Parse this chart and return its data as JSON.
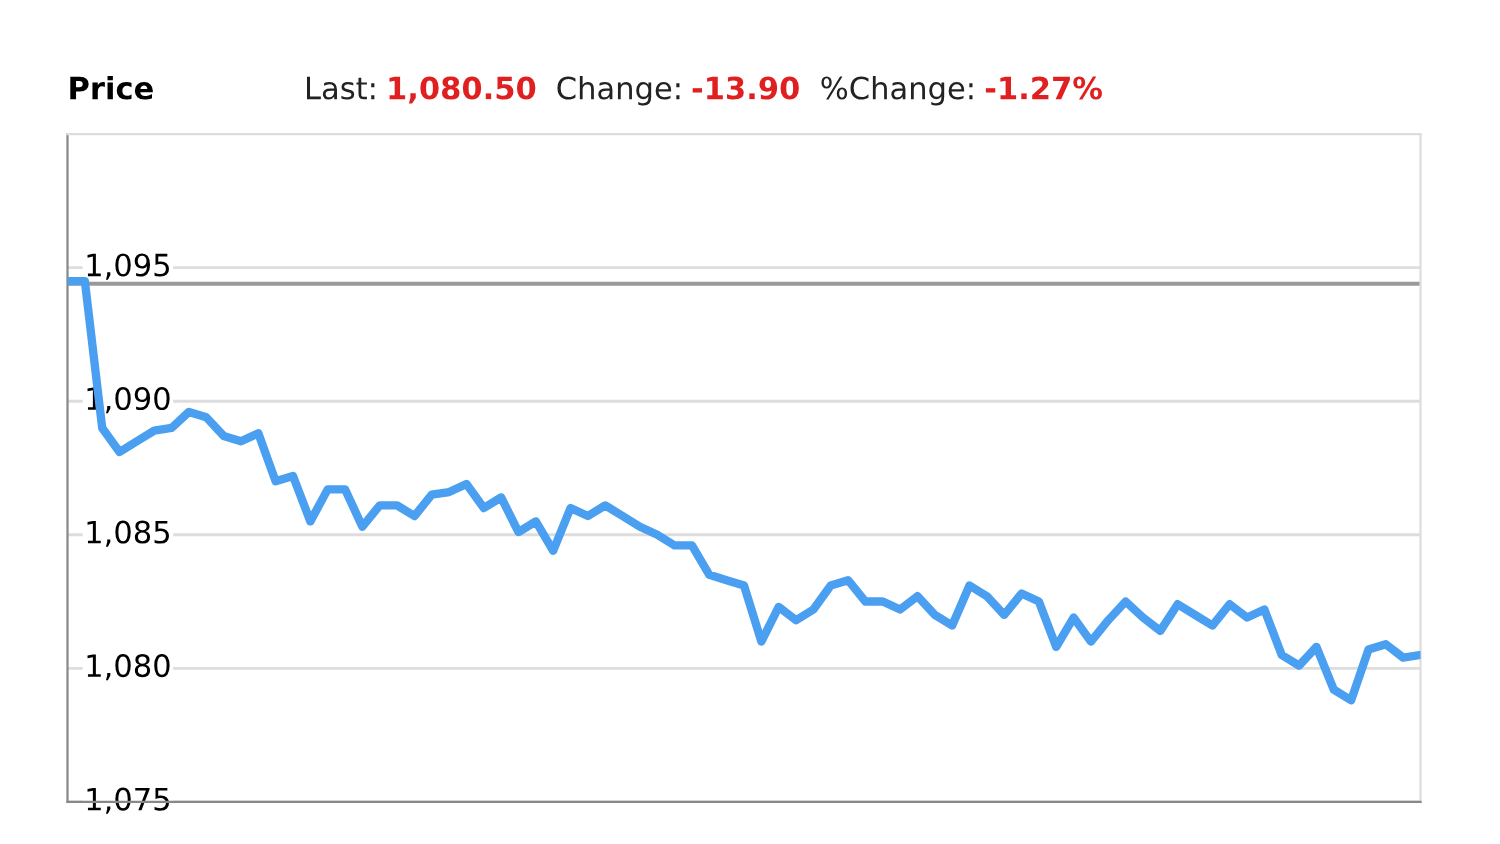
{
  "chart_data": {
    "type": "line",
    "title": "Price",
    "annotations": [
      "Last:",
      "1,080.50",
      "Change:",
      "-13.90",
      "%Change:",
      "-1.27%"
    ],
    "categories": [
      null,
      null,
      null,
      null,
      null,
      null,
      null,
      null,
      null,
      null,
      null,
      null,
      null,
      null,
      null,
      null,
      null,
      null,
      null,
      null,
      null,
      null,
      null,
      null,
      null,
      null,
      null,
      null,
      null,
      null,
      null,
      null,
      null,
      null,
      null,
      null,
      null,
      null,
      null,
      null,
      null,
      null,
      null,
      null,
      null,
      null,
      null,
      null,
      null,
      null,
      null,
      null,
      null,
      null,
      null,
      null,
      null,
      null,
      null,
      null,
      null,
      null,
      null,
      null,
      null,
      null,
      null,
      null,
      null,
      null,
      null,
      null,
      null,
      null,
      null,
      null,
      null,
      null,
      null
    ],
    "series": [
      {
        "color": "#4a9ff0",
        "values": [
          1094.5,
          1094.5,
          1089.0,
          1088.1,
          1088.5,
          1088.9,
          1089.0,
          1089.6,
          1089.4,
          1088.7,
          1088.5,
          1088.8,
          1087.0,
          1087.2,
          1085.5,
          1086.7,
          1086.7,
          1085.3,
          1086.1,
          1086.1,
          1085.7,
          1086.5,
          1086.6,
          1086.9,
          1086.0,
          1086.4,
          1085.1,
          1085.5,
          1084.4,
          1086.0,
          1085.7,
          1086.1,
          1085.7,
          1085.3,
          1085.0,
          1084.6,
          1084.6,
          1083.5,
          1083.3,
          1083.1,
          1081.0,
          1082.3,
          1081.8,
          1082.2,
          1083.1,
          1083.3,
          1082.5,
          1082.5,
          1082.2,
          1082.7,
          1082.0,
          1081.6,
          1083.1,
          1082.7,
          1082.0,
          1082.8,
          1082.5,
          1080.8,
          1081.9,
          1081.0,
          1081.8,
          1082.5,
          1081.9,
          1081.4,
          1082.4,
          1082.0,
          1081.6,
          1082.4,
          1081.9,
          1082.2,
          1080.5,
          1080.1,
          1080.8,
          1079.2,
          1078.8,
          1080.7,
          1080.9,
          1080.4,
          1080.5
        ]
      }
    ],
    "ylim": [
      1075,
      1100
    ],
    "yticks": [
      {
        "value": 1075,
        "label": "1,075"
      },
      {
        "value": 1080,
        "label": "1,080"
      },
      {
        "value": 1085,
        "label": "1,085"
      },
      {
        "value": 1090,
        "label": "1,090"
      },
      {
        "value": 1095,
        "label": "1,095"
      }
    ],
    "ref_lines": [
      {
        "axis": "y",
        "value": 1094.4,
        "color": "#999999"
      }
    ],
    "grid": "y",
    "tick_labels": "y"
  }
}
